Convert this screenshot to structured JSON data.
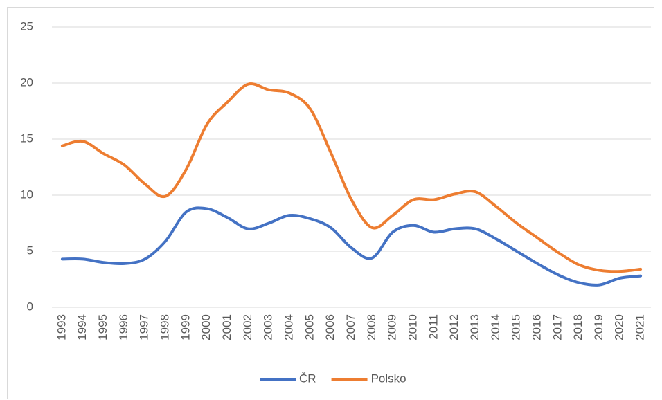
{
  "chart_data": {
    "type": "line",
    "categories": [
      "1993",
      "1994",
      "1995",
      "1996",
      "1997",
      "1998",
      "1999",
      "2000",
      "2001",
      "2002",
      "2003",
      "2004",
      "2005",
      "2006",
      "2007",
      "2008",
      "2009",
      "2010",
      "2011",
      "2012",
      "2013",
      "2014",
      "2015",
      "2016",
      "2017",
      "2018",
      "2019",
      "2020",
      "2021"
    ],
    "series": [
      {
        "name": "ČR",
        "color": "#4472c4",
        "values": [
          4.3,
          4.3,
          4.0,
          3.9,
          4.3,
          5.9,
          8.5,
          8.8,
          8.0,
          7.0,
          7.5,
          8.2,
          7.9,
          7.1,
          5.3,
          4.4,
          6.7,
          7.3,
          6.7,
          7.0,
          7.0,
          6.1,
          5.0,
          3.9,
          2.9,
          2.2,
          2.0,
          2.6,
          2.8
        ]
      },
      {
        "name": "Polsko",
        "color": "#ed7d31",
        "values": [
          14.4,
          14.8,
          13.7,
          12.7,
          11.0,
          9.9,
          12.3,
          16.3,
          18.3,
          19.9,
          19.4,
          19.1,
          17.7,
          13.8,
          9.6,
          7.1,
          8.2,
          9.6,
          9.6,
          10.1,
          10.3,
          9.0,
          7.5,
          6.2,
          4.9,
          3.8,
          3.3,
          3.2,
          3.4
        ]
      }
    ],
    "ylim": [
      0,
      25
    ],
    "yticks": [
      0,
      5,
      10,
      15,
      20,
      25
    ],
    "grid": true,
    "legend": "bottom"
  }
}
